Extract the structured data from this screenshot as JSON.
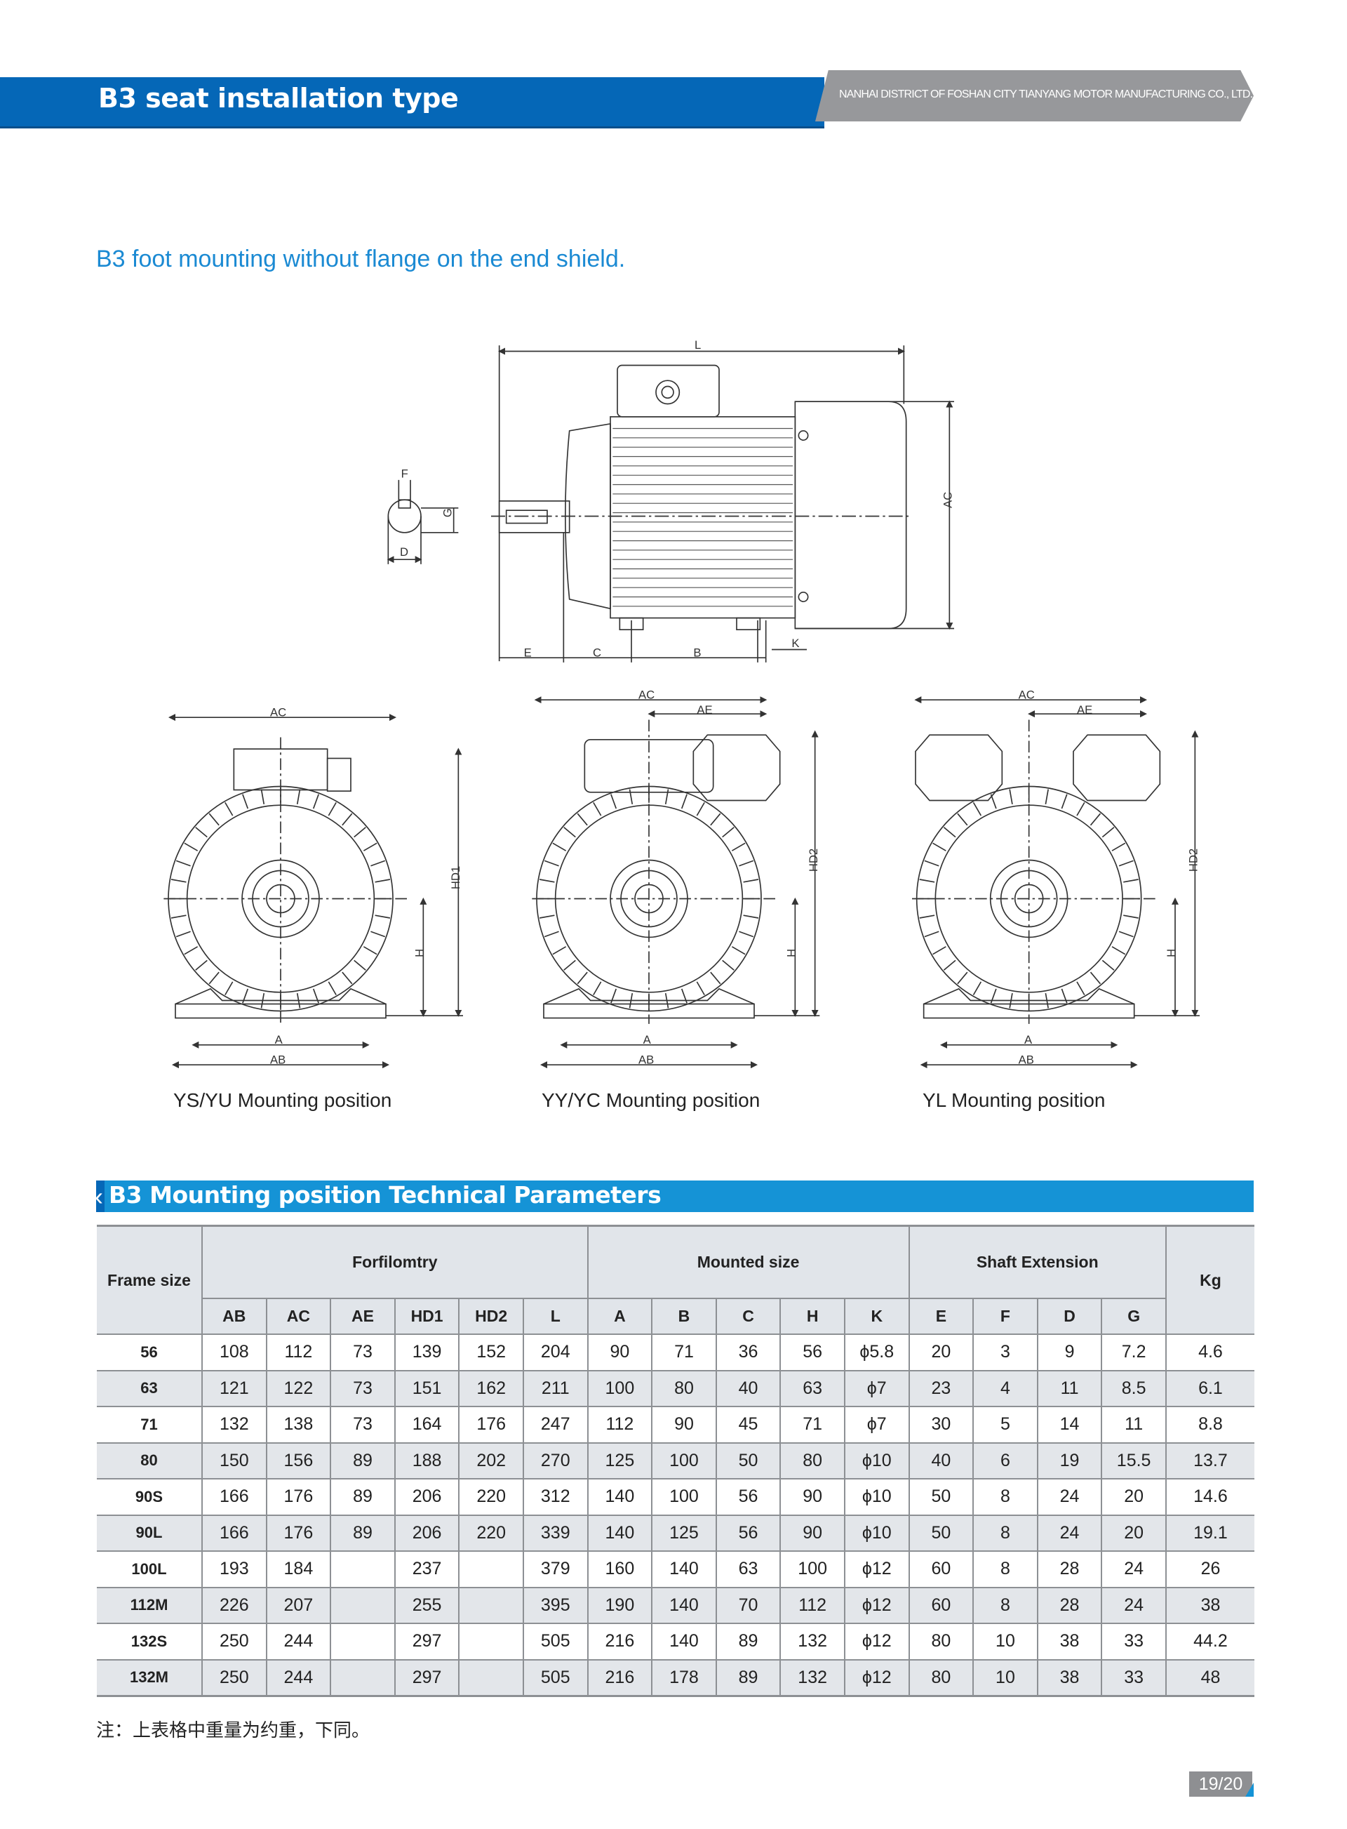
{
  "header": {
    "title": "B3 seat installation type",
    "company": "NANHAI DISTRICT OF FOSHAN CITY TIANYANG MOTOR MANUFACTURING CO., LTD.",
    "colors": {
      "blue": "#0567b7",
      "gray": "#97989b",
      "accent": "#1593d6"
    }
  },
  "subtitle": "B3 foot mounting without flange on the end shield.",
  "side_view": {
    "labels": {
      "L": "L",
      "AC": "AC",
      "E": "E",
      "C": "C",
      "B": "B",
      "K": "K",
      "F": "F",
      "G": "G",
      "D": "D"
    }
  },
  "front_views": [
    {
      "caption": "YS/YU Mounting position",
      "labels": {
        "AC": "AC",
        "HD": "HD1",
        "H": "H",
        "A": "A",
        "AB": "AB"
      }
    },
    {
      "caption": "YY/YC Mounting position",
      "labels": {
        "AC": "AC",
        "AE": "AE",
        "HD": "HD2",
        "H": "H",
        "A": "A",
        "AB": "AB"
      }
    },
    {
      "caption": "YL Mounting position",
      "labels": {
        "AC": "AC",
        "AE": "AE",
        "HD": "HD2",
        "H": "H",
        "A": "A",
        "AB": "AB"
      }
    }
  ],
  "table": {
    "section_title": "B3 Mounting position Technical Parameters",
    "groups": {
      "frame": "Frame size",
      "forfilomtry": "Forfilomtry",
      "mounted": "Mounted size",
      "shaft": "Shaft Extension",
      "kg": "Kg"
    },
    "columns": [
      "AB",
      "AC",
      "AE",
      "HD1",
      "HD2",
      "L",
      "A",
      "B",
      "C",
      "H",
      "K",
      "E",
      "F",
      "D",
      "G"
    ],
    "rows": [
      [
        "56",
        "108",
        "112",
        "73",
        "139",
        "152",
        "204",
        "90",
        "71",
        "36",
        "56",
        "ϕ5.8",
        "20",
        "3",
        "9",
        "7.2",
        "4.6"
      ],
      [
        "63",
        "121",
        "122",
        "73",
        "151",
        "162",
        "211",
        "100",
        "80",
        "40",
        "63",
        "ϕ7",
        "23",
        "4",
        "11",
        "8.5",
        "6.1"
      ],
      [
        "71",
        "132",
        "138",
        "73",
        "164",
        "176",
        "247",
        "112",
        "90",
        "45",
        "71",
        "ϕ7",
        "30",
        "5",
        "14",
        "11",
        "8.8"
      ],
      [
        "80",
        "150",
        "156",
        "89",
        "188",
        "202",
        "270",
        "125",
        "100",
        "50",
        "80",
        "ϕ10",
        "40",
        "6",
        "19",
        "15.5",
        "13.7"
      ],
      [
        "90S",
        "166",
        "176",
        "89",
        "206",
        "220",
        "312",
        "140",
        "100",
        "56",
        "90",
        "ϕ10",
        "50",
        "8",
        "24",
        "20",
        "14.6"
      ],
      [
        "90L",
        "166",
        "176",
        "89",
        "206",
        "220",
        "339",
        "140",
        "125",
        "56",
        "90",
        "ϕ10",
        "50",
        "8",
        "24",
        "20",
        "19.1"
      ],
      [
        "100L",
        "193",
        "184",
        "",
        "237",
        "",
        "379",
        "160",
        "140",
        "63",
        "100",
        "ϕ12",
        "60",
        "8",
        "28",
        "24",
        "26"
      ],
      [
        "112M",
        "226",
        "207",
        "",
        "255",
        "",
        "395",
        "190",
        "140",
        "70",
        "112",
        "ϕ12",
        "60",
        "8",
        "28",
        "24",
        "38"
      ],
      [
        "132S",
        "250",
        "244",
        "",
        "297",
        "",
        "505",
        "216",
        "140",
        "89",
        "132",
        "ϕ12",
        "80",
        "10",
        "38",
        "33",
        "44.2"
      ],
      [
        "132M",
        "250",
        "244",
        "",
        "297",
        "",
        "505",
        "216",
        "178",
        "89",
        "132",
        "ϕ12",
        "80",
        "10",
        "38",
        "33",
        "48"
      ]
    ]
  },
  "note": "注：上表格中重量为约重，下同。",
  "page": "19/20"
}
